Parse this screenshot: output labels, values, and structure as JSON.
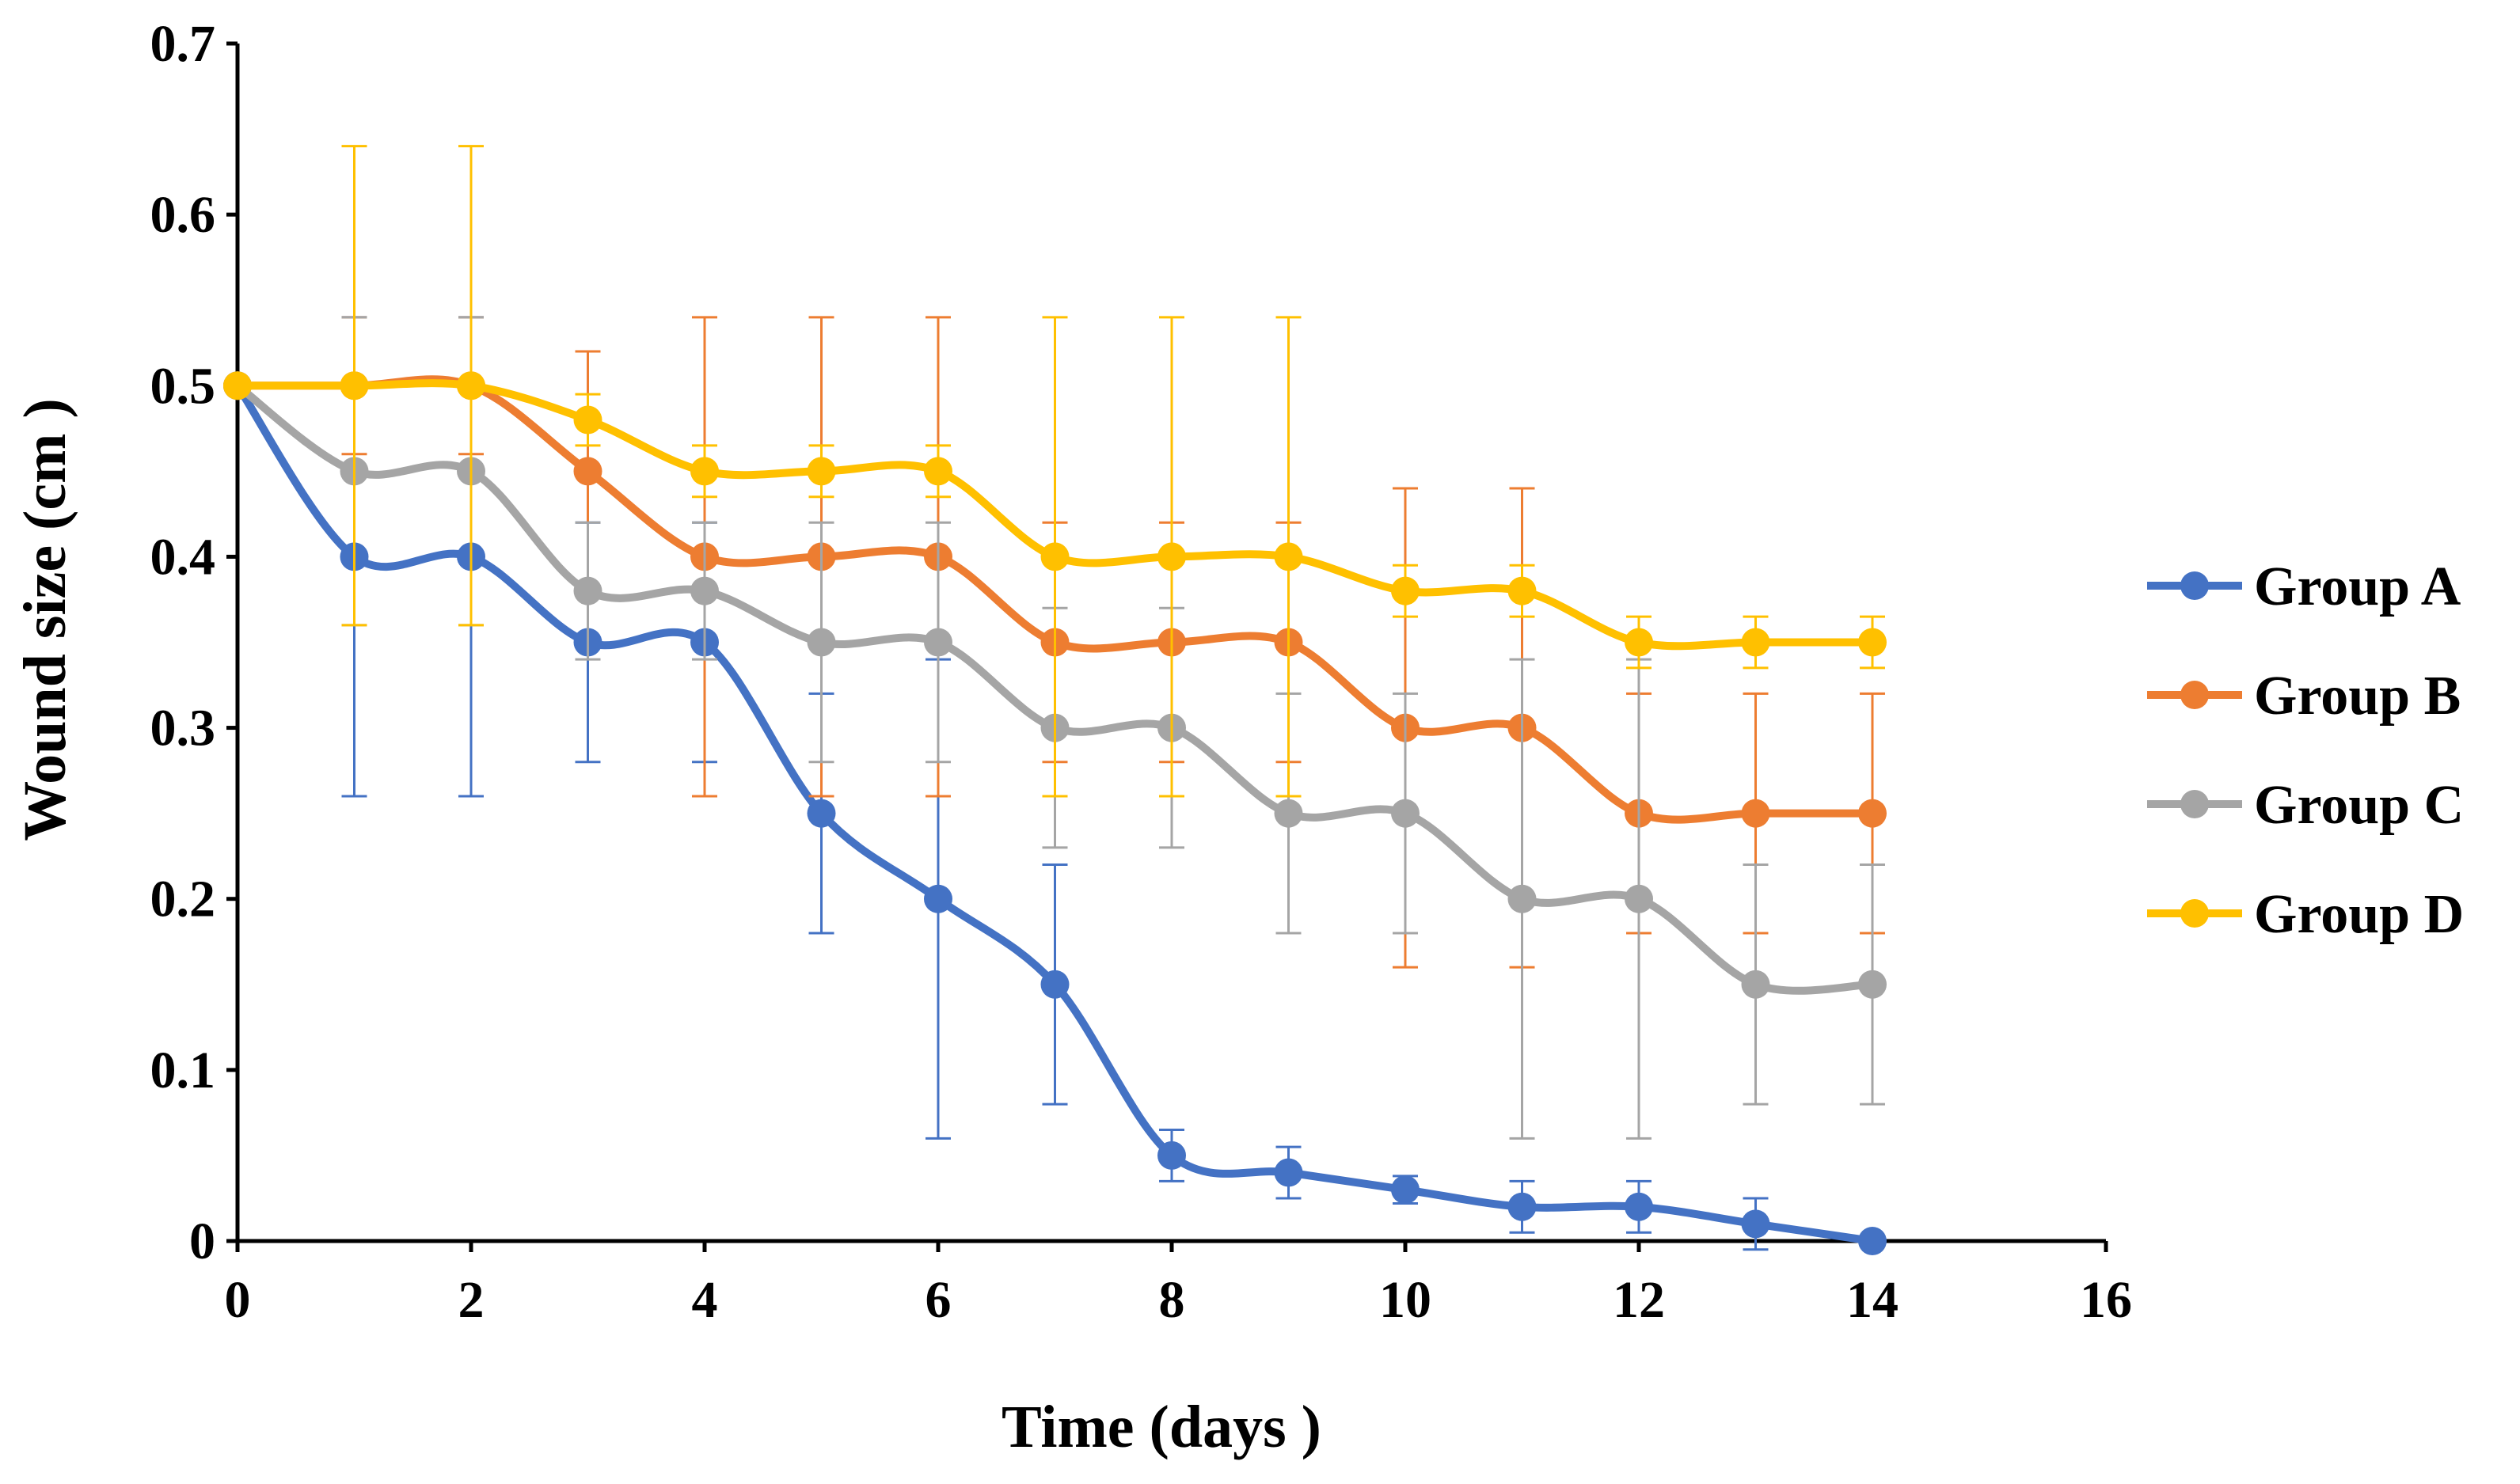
{
  "chart_data": {
    "type": "line",
    "title": "",
    "xlabel": "Time (days )",
    "ylabel": "Wound size (cm )",
    "xlim": [
      0,
      16
    ],
    "ylim": [
      0,
      0.7
    ],
    "xticks": [
      0,
      2,
      4,
      6,
      8,
      10,
      12,
      14,
      16
    ],
    "yticks": [
      0,
      0.1,
      0.2,
      0.3,
      0.4,
      0.5,
      0.6,
      0.7
    ],
    "xtick_labels": [
      "0",
      "2",
      "4",
      "6",
      "8",
      "10",
      "12",
      "14",
      "16"
    ],
    "ytick_labels": [
      "0",
      "0.1",
      "0.2",
      "0.3",
      "0.4",
      "0.5",
      "0.6",
      "0.7"
    ],
    "grid": false,
    "legend_position": "right",
    "x": [
      0,
      1,
      2,
      3,
      4,
      5,
      6,
      7,
      8,
      9,
      10,
      11,
      12,
      13,
      14
    ],
    "series": [
      {
        "name": "Group A",
        "color": "#4472C4",
        "values": [
          0.5,
          0.4,
          0.4,
          0.35,
          0.35,
          0.25,
          0.2,
          0.15,
          0.05,
          0.04,
          0.03,
          0.02,
          0.02,
          0.01,
          0.0
        ],
        "errors": [
          0.0,
          0.14,
          0.14,
          0.07,
          0.07,
          0.07,
          0.14,
          0.07,
          0.015,
          0.015,
          0.008,
          0.015,
          0.015,
          0.015,
          0.0
        ]
      },
      {
        "name": "Group B",
        "color": "#ED7D31",
        "values": [
          0.5,
          0.5,
          0.5,
          0.45,
          0.4,
          0.4,
          0.4,
          0.35,
          0.35,
          0.35,
          0.3,
          0.3,
          0.25,
          0.25,
          0.25
        ],
        "errors": [
          0.0,
          0.04,
          0.04,
          0.07,
          0.14,
          0.14,
          0.14,
          0.07,
          0.07,
          0.07,
          0.14,
          0.14,
          0.07,
          0.07,
          0.07
        ]
      },
      {
        "name": "Group C",
        "color": "#A5A5A5",
        "values": [
          0.5,
          0.45,
          0.45,
          0.38,
          0.38,
          0.35,
          0.35,
          0.3,
          0.3,
          0.25,
          0.25,
          0.2,
          0.2,
          0.15,
          0.15
        ],
        "errors": [
          0.0,
          0.09,
          0.09,
          0.04,
          0.04,
          0.07,
          0.07,
          0.07,
          0.07,
          0.07,
          0.07,
          0.14,
          0.14,
          0.07,
          0.07
        ]
      },
      {
        "name": "Group D",
        "color": "#FFC000",
        "values": [
          0.5,
          0.5,
          0.5,
          0.48,
          0.45,
          0.45,
          0.45,
          0.4,
          0.4,
          0.4,
          0.38,
          0.38,
          0.35,
          0.35,
          0.35
        ],
        "errors": [
          0.0,
          0.14,
          0.14,
          0.015,
          0.015,
          0.015,
          0.015,
          0.14,
          0.14,
          0.14,
          0.015,
          0.015,
          0.015,
          0.015,
          0.015
        ]
      }
    ]
  }
}
